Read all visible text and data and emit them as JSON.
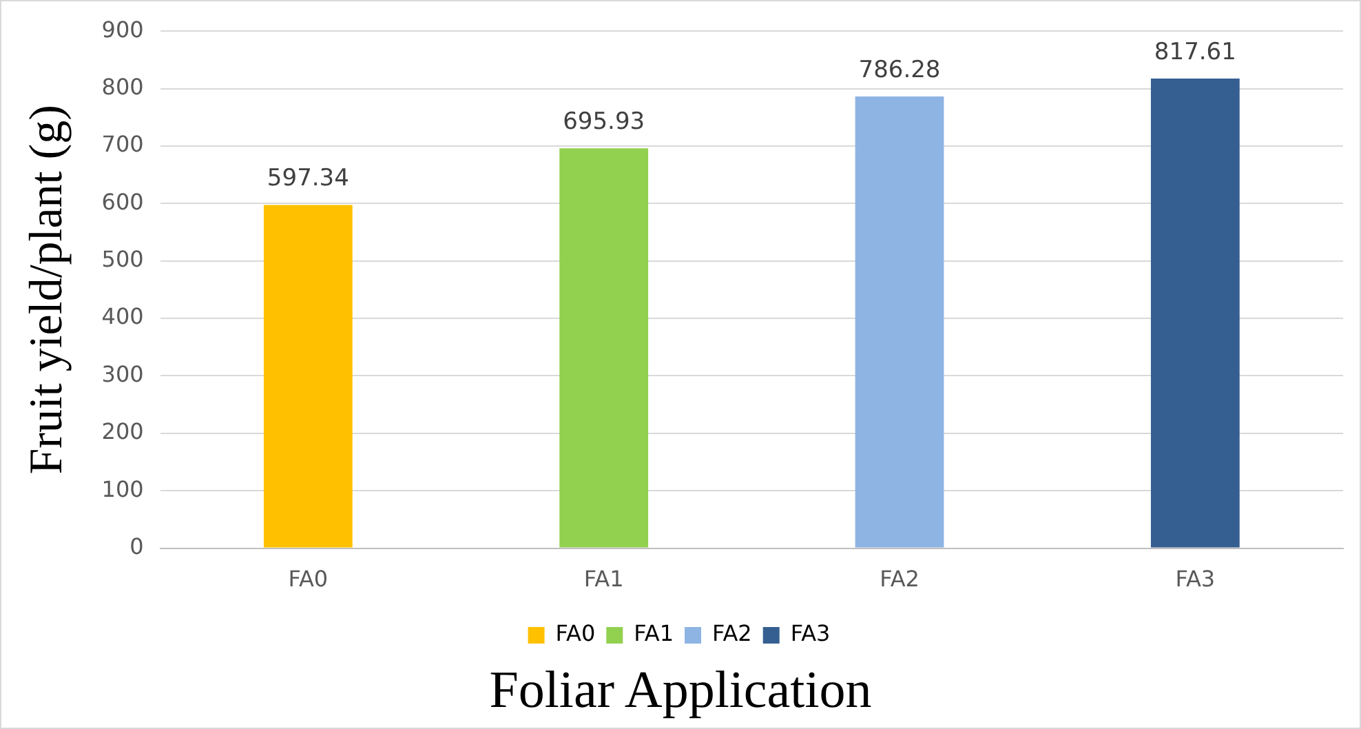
{
  "chart_data": {
    "type": "bar",
    "xlabel": "Foliar Application",
    "ylabel": "Fruit yield/plant (g)",
    "categories": [
      "FA0",
      "FA1",
      "FA2",
      "FA3"
    ],
    "series": [
      {
        "name": "FA0",
        "color": "#ffc000",
        "values": [
          597.34,
          null,
          null,
          null
        ]
      },
      {
        "name": "FA1",
        "color": "#92d050",
        "values": [
          null,
          695.93,
          null,
          null
        ]
      },
      {
        "name": "FA2",
        "color": "#8eb4e3",
        "values": [
          null,
          null,
          786.28,
          null
        ]
      },
      {
        "name": "FA3",
        "color": "#365f91",
        "values": [
          null,
          null,
          null,
          817.61
        ]
      }
    ],
    "ylim": [
      0,
      900
    ],
    "yticks": [
      0,
      100,
      200,
      300,
      400,
      500,
      600,
      700,
      800,
      900
    ],
    "grid": "y",
    "legend": "bottom",
    "data_labels": true
  }
}
